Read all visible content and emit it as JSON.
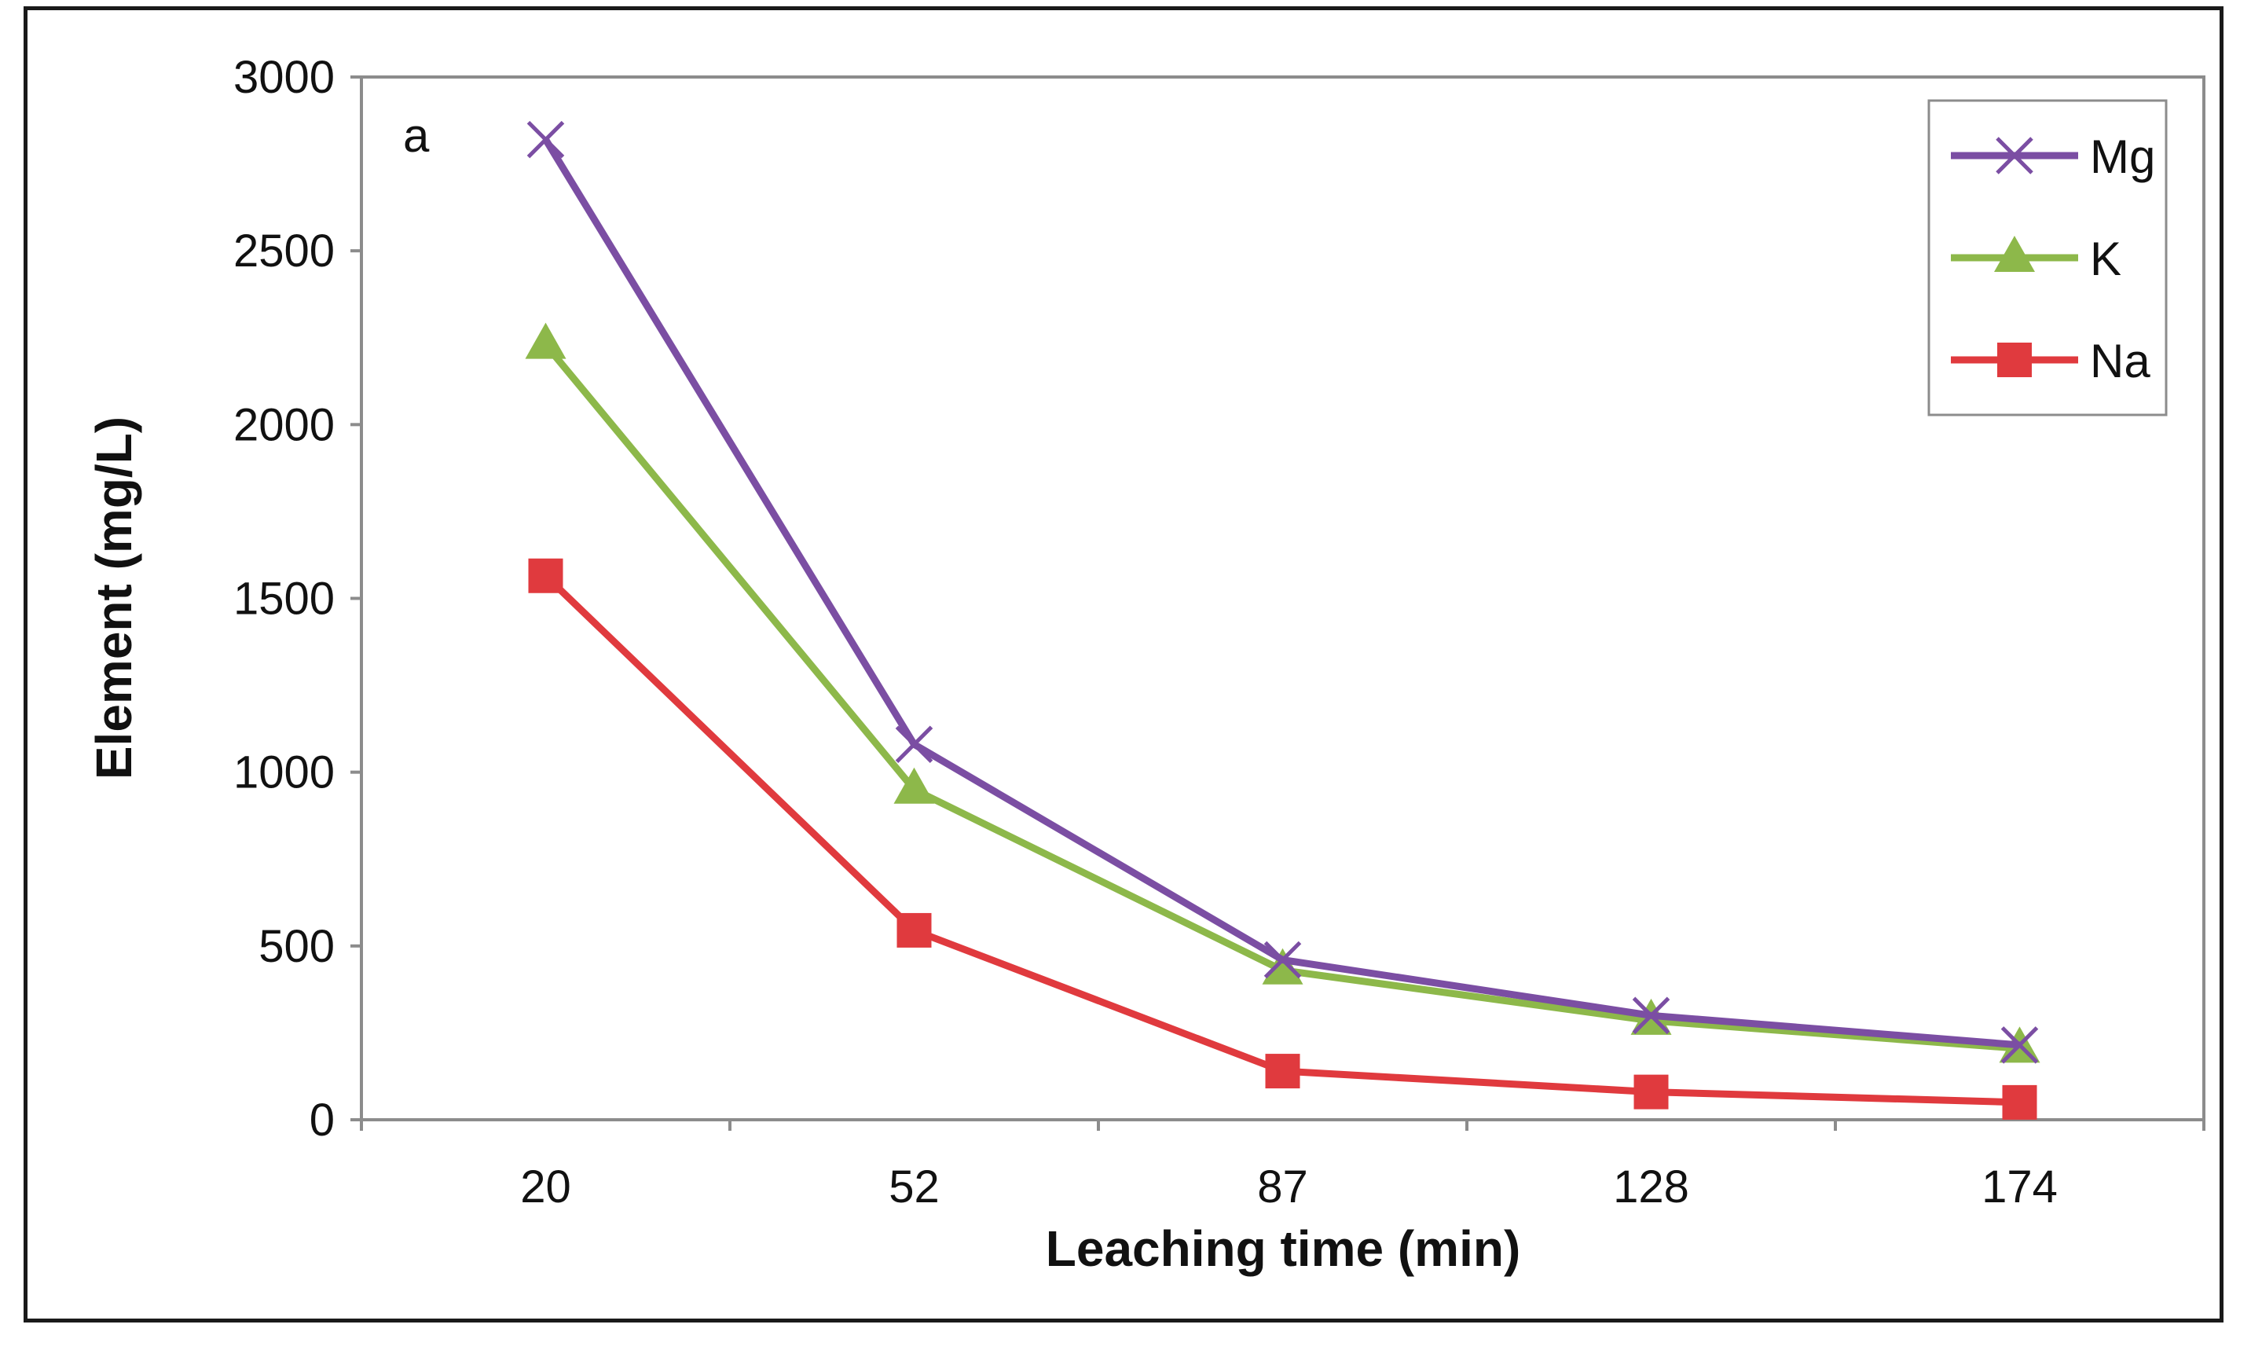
{
  "chart_data": {
    "type": "line",
    "title": "",
    "panel_label": "a",
    "xlabel": "Leaching time (min)",
    "ylabel": "Element (mg/L)",
    "categories": [
      "20",
      "52",
      "87",
      "128",
      "174"
    ],
    "ylim": [
      0,
      3000
    ],
    "yticks": [
      "0",
      "500",
      "1000",
      "1500",
      "2000",
      "2500",
      "3000"
    ],
    "grid": false,
    "legend_position": "top-right",
    "series": [
      {
        "name": "Mg",
        "marker": "x",
        "color": "#7b4ea3",
        "values": [
          2820,
          1080,
          460,
          300,
          215
        ]
      },
      {
        "name": "K",
        "marker": "triangle",
        "color": "#8db84a",
        "values": [
          2230,
          950,
          430,
          285,
          205
        ]
      },
      {
        "name": "Na",
        "marker": "square",
        "color": "#e03a3e",
        "values": [
          1565,
          545,
          140,
          80,
          50
        ]
      }
    ]
  }
}
